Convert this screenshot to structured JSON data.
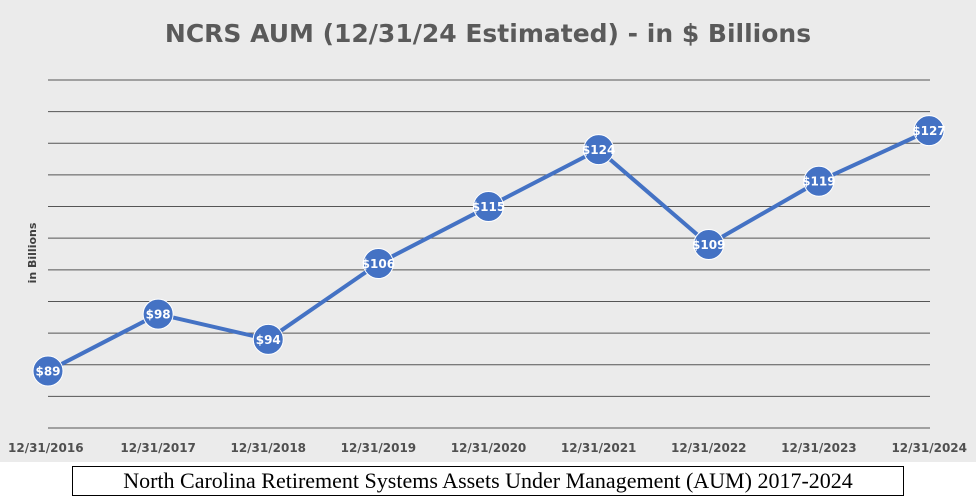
{
  "chart_data": {
    "type": "line",
    "title": "NCRS AUM (12/31/24 Estimated) - in $ Billions",
    "xlabel": "",
    "ylabel": "in Billions",
    "categories": [
      "12/31/2016",
      "12/31/2017",
      "12/31/2018",
      "12/31/2019",
      "12/31/2020",
      "12/31/2021",
      "12/31/2022",
      "12/31/2023",
      "12/31/2024"
    ],
    "series": [
      {
        "values": [
          89,
          98,
          94,
          106,
          115,
          124,
          109,
          119,
          127
        ],
        "data_labels": [
          "$89",
          "$98",
          "$94",
          "$106",
          "$115",
          "$124",
          "$109",
          "$119",
          "$127"
        ],
        "color": "#4472c4"
      }
    ],
    "ylim": [
      80,
      135
    ],
    "grid": true,
    "legend": "none"
  },
  "caption": "North Carolina Retirement Systems Assets Under Management (AUM) 2017-2024",
  "colors": {
    "background": "#ebebeb",
    "gridline": "#555555",
    "line": "#4472c4",
    "marker_border": "#ffffff"
  }
}
